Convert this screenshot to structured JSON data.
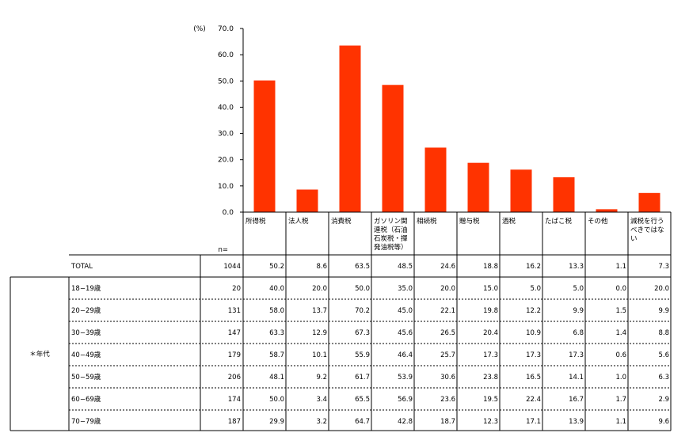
{
  "chart_data": {
    "type": "bar",
    "yunit": "(%)",
    "ylim": [
      0,
      70
    ],
    "yticks": [
      "70.0",
      "60.0",
      "50.0",
      "40.0",
      "30.0",
      "20.0",
      "10.0",
      "0.0"
    ],
    "bar_color": "#ff3300",
    "categories": [
      [
        "所得税"
      ],
      [
        "法人税"
      ],
      [
        "消費税"
      ],
      [
        "ガソリン関",
        "連税（石油",
        "石炭税・揮",
        "発油税等）"
      ],
      [
        "相続税"
      ],
      [
        "贈与税"
      ],
      [
        "酒税"
      ],
      [
        "たばこ税"
      ],
      [
        "その他"
      ],
      [
        "減税を行う",
        "べきではな",
        "い"
      ]
    ],
    "values": [
      50.2,
      8.6,
      63.5,
      48.5,
      24.6,
      18.8,
      16.2,
      13.3,
      1.1,
      7.3
    ]
  },
  "table": {
    "n_label": "n=",
    "group_label": "＊年代",
    "total": {
      "label": "TOTAL",
      "n": "1044",
      "values": [
        "50.2",
        "8.6",
        "63.5",
        "48.5",
        "24.6",
        "18.8",
        "16.2",
        "13.3",
        "1.1",
        "7.3"
      ]
    },
    "rows": [
      {
        "label": "18−19歳",
        "n": "20",
        "values": [
          "40.0",
          "20.0",
          "50.0",
          "35.0",
          "20.0",
          "15.0",
          "5.0",
          "5.0",
          "0.0",
          "20.0"
        ]
      },
      {
        "label": "20−29歳",
        "n": "131",
        "values": [
          "58.0",
          "13.7",
          "70.2",
          "45.0",
          "22.1",
          "19.8",
          "12.2",
          "9.9",
          "1.5",
          "9.9"
        ]
      },
      {
        "label": "30−39歳",
        "n": "147",
        "values": [
          "63.3",
          "12.9",
          "67.3",
          "45.6",
          "26.5",
          "20.4",
          "10.9",
          "6.8",
          "1.4",
          "8.8"
        ]
      },
      {
        "label": "40−49歳",
        "n": "179",
        "values": [
          "58.7",
          "10.1",
          "55.9",
          "46.4",
          "25.7",
          "17.3",
          "17.3",
          "17.3",
          "0.6",
          "5.6"
        ]
      },
      {
        "label": "50−59歳",
        "n": "206",
        "values": [
          "48.1",
          "9.2",
          "61.7",
          "53.9",
          "30.6",
          "23.8",
          "16.5",
          "14.1",
          "1.0",
          "6.3"
        ]
      },
      {
        "label": "60−69歳",
        "n": "174",
        "values": [
          "50.0",
          "3.4",
          "65.5",
          "56.9",
          "23.6",
          "19.5",
          "22.4",
          "16.7",
          "1.7",
          "2.9"
        ]
      },
      {
        "label": "70−79歳",
        "n": "187",
        "values": [
          "29.9",
          "3.2",
          "64.7",
          "42.8",
          "18.7",
          "12.3",
          "17.1",
          "13.9",
          "1.1",
          "9.6"
        ]
      }
    ]
  }
}
